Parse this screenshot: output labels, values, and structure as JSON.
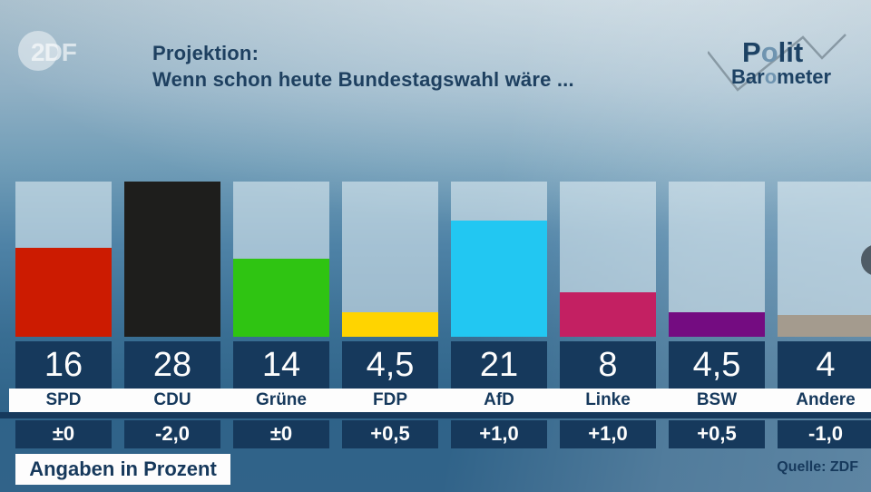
{
  "header": {
    "zdf_logo_text": "2DF",
    "title_line1": "Projektion:",
    "title_line2": "Wenn schon heute Bundestagswahl wäre ...",
    "logo": {
      "polit_p": "P",
      "polit_o": "o",
      "polit_rest": "lit",
      "baro_pre": "Bar",
      "baro_o": "o",
      "baro_rest": "meter"
    }
  },
  "chart_data": {
    "type": "bar",
    "title": "Projektion: Wenn schon heute Bundestagswahl wäre ...",
    "ylabel": "",
    "xlabel": "",
    "ylim": [
      0,
      28
    ],
    "grid": false,
    "legend": "none",
    "categories": [
      "SPD",
      "CDU",
      "Grüne",
      "FDP",
      "AfD",
      "Linke",
      "BSW",
      "Andere"
    ],
    "values": [
      16,
      28,
      14,
      4.5,
      21,
      8,
      4.5,
      4
    ],
    "value_labels": [
      "16",
      "28",
      "14",
      "4,5",
      "21",
      "8",
      "4,5",
      "4"
    ],
    "changes": [
      "±0",
      "-2,0",
      "±0",
      "+0,5",
      "+1,0",
      "+1,0",
      "+0,5",
      "-1,0"
    ],
    "colors": [
      "#cc1b01",
      "#1e1e1c",
      "#2fc412",
      "#ffd400",
      "#22c7f2",
      "#c32062",
      "#740c81",
      "#a49b8e"
    ],
    "unit_note": "Angaben in Prozent"
  },
  "footer": {
    "note": "Angaben in Prozent",
    "source": "Quelle: ZDF"
  },
  "theme": {
    "box_navy": "#16395c",
    "title_color": "#1e4060",
    "track_color": "rgba(228,239,244,0.58)"
  }
}
